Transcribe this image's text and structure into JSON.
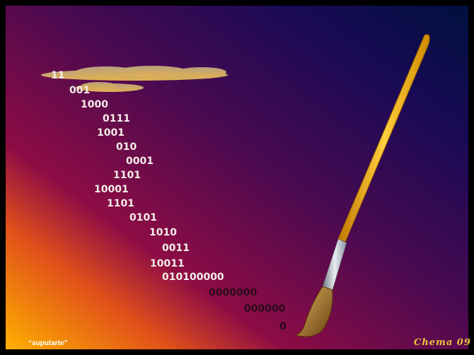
{
  "binary_lines": [
    "11",
    "001",
    "1000",
    "0111",
    "1001",
    "010",
    "0001",
    "1101",
    "10001",
    "1101",
    "0101",
    "1010",
    "0011",
    "10011",
    "010100000",
    "0000000",
    "000000",
    "0"
  ],
  "caption": "“suputarte”",
  "signature": "Chema 09"
}
